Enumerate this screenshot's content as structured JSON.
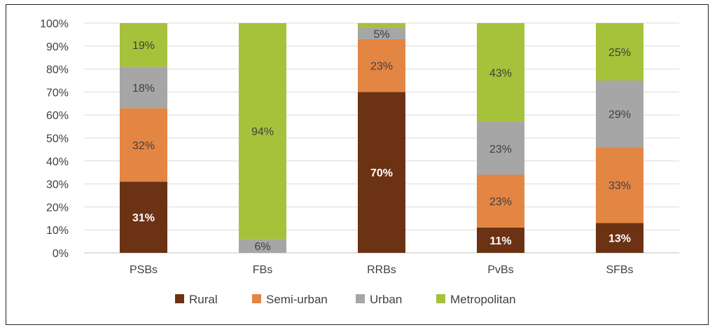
{
  "chart_data": {
    "type": "bar",
    "stacked": true,
    "categories": [
      "PSBs",
      "FBs",
      "RRBs",
      "PvBs",
      "SFBs"
    ],
    "series": [
      {
        "name": "Rural",
        "color": "#6b3214",
        "label_color": "#ffffff",
        "values": [
          31,
          0,
          70,
          11,
          13
        ],
        "labels": [
          "31%",
          "",
          "70%",
          "11%",
          "13%"
        ]
      },
      {
        "name": "Semi-urban",
        "color": "#e38543",
        "label_color": "#404040",
        "values": [
          32,
          0,
          23,
          23,
          33
        ],
        "labels": [
          "32%",
          "",
          "23%",
          "23%",
          "33%"
        ]
      },
      {
        "name": "Urban",
        "color": "#a6a6a6",
        "label_color": "#404040",
        "values": [
          18,
          6,
          5,
          23,
          29
        ],
        "labels": [
          "18%",
          "6%",
          "5%",
          "23%",
          "29%"
        ]
      },
      {
        "name": "Metropolitan",
        "color": "#a5c23a",
        "label_color": "#404040",
        "values": [
          19,
          94,
          2,
          43,
          25
        ],
        "labels": [
          "19%",
          "94%",
          "",
          "43%",
          "25%"
        ]
      }
    ],
    "ylim": [
      0,
      100
    ],
    "y_ticks": [
      "0%",
      "10%",
      "20%",
      "30%",
      "40%",
      "50%",
      "60%",
      "70%",
      "80%",
      "90%",
      "100%"
    ],
    "grid": true,
    "legend_position": "bottom",
    "title": "",
    "xlabel": "",
    "ylabel": ""
  }
}
